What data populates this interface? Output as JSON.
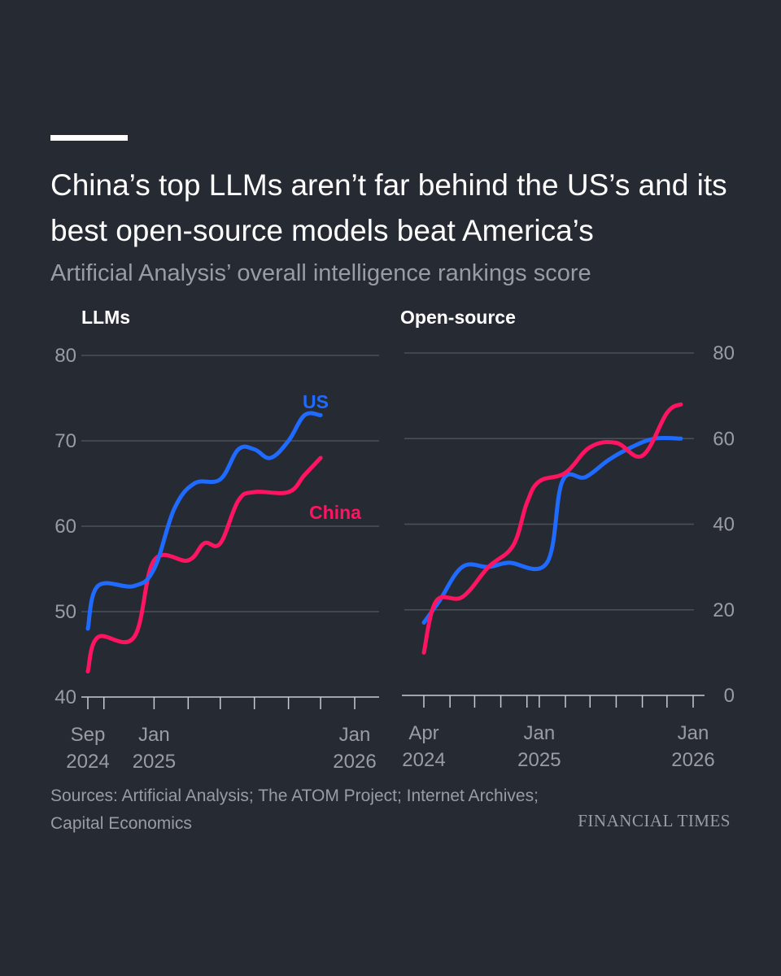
{
  "header": {
    "title": "China’s top LLMs aren’t far behind the US’s and its best open-source models beat America’s",
    "subtitle": "Artificial Analysis’ overall intelligence rankings score"
  },
  "footer": {
    "sources": "Sources: Artificial Analysis; The ATOM Project; Internet Archives; Capital Economics",
    "brand": "FINANCIAL TIMES"
  },
  "colors": {
    "us": "#1f6bff",
    "china": "#ff1462",
    "background": "#262a33"
  },
  "chart_data": [
    {
      "type": "line",
      "title": "LLMs",
      "ylim": [
        40,
        80
      ],
      "yticks": [
        40,
        50,
        60,
        70,
        80
      ],
      "xlim": [
        2024.67,
        2026.0
      ],
      "xtick_labels": [
        {
          "x": 2024.67,
          "line1": "Sep",
          "line2": "2024"
        },
        {
          "x": 2025.0,
          "line1": "Jan",
          "line2": "2025"
        },
        {
          "x": 2026.0,
          "line1": "Jan",
          "line2": "2026"
        }
      ],
      "minor_ticks": [
        2024.67,
        2024.75,
        2025.0,
        2025.17,
        2025.33,
        2025.5,
        2025.67,
        2025.83,
        2026.0
      ],
      "grid": true,
      "y_axis_side": "left",
      "series": [
        {
          "name": "US",
          "color": "#1f6bff",
          "points": [
            [
              2024.67,
              48
            ],
            [
              2024.72,
              53
            ],
            [
              2024.9,
              53
            ],
            [
              2025.0,
              55
            ],
            [
              2025.1,
              62
            ],
            [
              2025.2,
              65
            ],
            [
              2025.33,
              65.5
            ],
            [
              2025.42,
              69
            ],
            [
              2025.5,
              69
            ],
            [
              2025.58,
              68
            ],
            [
              2025.67,
              70
            ],
            [
              2025.75,
              73
            ],
            [
              2025.83,
              73
            ]
          ]
        },
        {
          "name": "China",
          "color": "#ff1462",
          "points": [
            [
              2024.67,
              43
            ],
            [
              2024.72,
              47
            ],
            [
              2024.9,
              47
            ],
            [
              2025.0,
              56
            ],
            [
              2025.17,
              56
            ],
            [
              2025.25,
              58
            ],
            [
              2025.33,
              58
            ],
            [
              2025.42,
              63
            ],
            [
              2025.5,
              64
            ],
            [
              2025.67,
              64
            ],
            [
              2025.75,
              66
            ],
            [
              2025.83,
              68
            ]
          ]
        }
      ]
    },
    {
      "type": "line",
      "title": "Open-source",
      "ylim": [
        0,
        80
      ],
      "yticks": [
        0,
        20,
        40,
        60,
        80
      ],
      "xlim": [
        2024.25,
        2026.0
      ],
      "xtick_labels": [
        {
          "x": 2024.25,
          "line1": "Apr",
          "line2": "2024"
        },
        {
          "x": 2025.0,
          "line1": "Jan",
          "line2": "2025"
        },
        {
          "x": 2026.0,
          "line1": "Jan",
          "line2": "2026"
        }
      ],
      "minor_ticks": [
        2024.25,
        2024.42,
        2024.58,
        2024.75,
        2024.92,
        2025.0,
        2025.17,
        2025.33,
        2025.5,
        2025.67,
        2025.83,
        2026.0
      ],
      "grid": true,
      "y_axis_side": "right",
      "series": [
        {
          "name": "US",
          "color": "#1f6bff",
          "points": [
            [
              2024.25,
              17
            ],
            [
              2024.35,
              22
            ],
            [
              2024.5,
              30
            ],
            [
              2024.67,
              30
            ],
            [
              2024.8,
              31
            ],
            [
              2025.05,
              31
            ],
            [
              2025.15,
              50
            ],
            [
              2025.3,
              51
            ],
            [
              2025.45,
              55
            ],
            [
              2025.6,
              58
            ],
            [
              2025.75,
              60
            ],
            [
              2025.92,
              60
            ]
          ]
        },
        {
          "name": "China",
          "color": "#ff1462",
          "points": [
            [
              2024.25,
              10
            ],
            [
              2024.33,
              22
            ],
            [
              2024.5,
              23
            ],
            [
              2024.67,
              30
            ],
            [
              2024.83,
              35
            ],
            [
              2024.92,
              45
            ],
            [
              2025.0,
              50
            ],
            [
              2025.17,
              52
            ],
            [
              2025.33,
              58
            ],
            [
              2025.5,
              59
            ],
            [
              2025.67,
              56
            ],
            [
              2025.83,
              66
            ],
            [
              2025.92,
              68
            ]
          ]
        }
      ]
    }
  ]
}
